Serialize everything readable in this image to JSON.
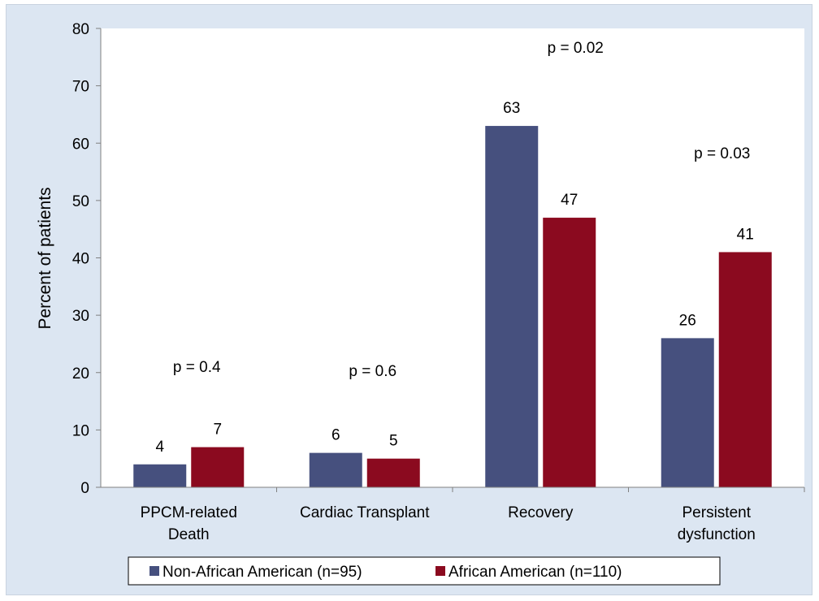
{
  "chart_data": {
    "type": "bar",
    "categories": [
      [
        "PPCM-related",
        "Death"
      ],
      [
        "Cardiac Transplant"
      ],
      [
        "Recovery"
      ],
      [
        "Persistent",
        "dysfunction"
      ]
    ],
    "series": [
      {
        "name": "Non-African American (n=95)",
        "color": "#46507e",
        "values": [
          4,
          6,
          63,
          26
        ]
      },
      {
        "name": "African American (n=110)",
        "color": "#8b0a1f",
        "values": [
          7,
          5,
          47,
          41
        ]
      }
    ],
    "data_labels": [
      [
        "4",
        "7"
      ],
      [
        "6",
        "5"
      ],
      [
        "63",
        "47"
      ],
      [
        "26",
        "41"
      ]
    ],
    "p_values": [
      "p = 0.4",
      "p = 0.6",
      "p = 0.02",
      "p = 0.03"
    ],
    "ylabel": "Percent of patients",
    "ylim": [
      0,
      80
    ],
    "yticks": [
      0,
      10,
      20,
      30,
      40,
      50,
      60,
      70,
      80
    ],
    "grid": false,
    "legend_position": "bottom"
  }
}
